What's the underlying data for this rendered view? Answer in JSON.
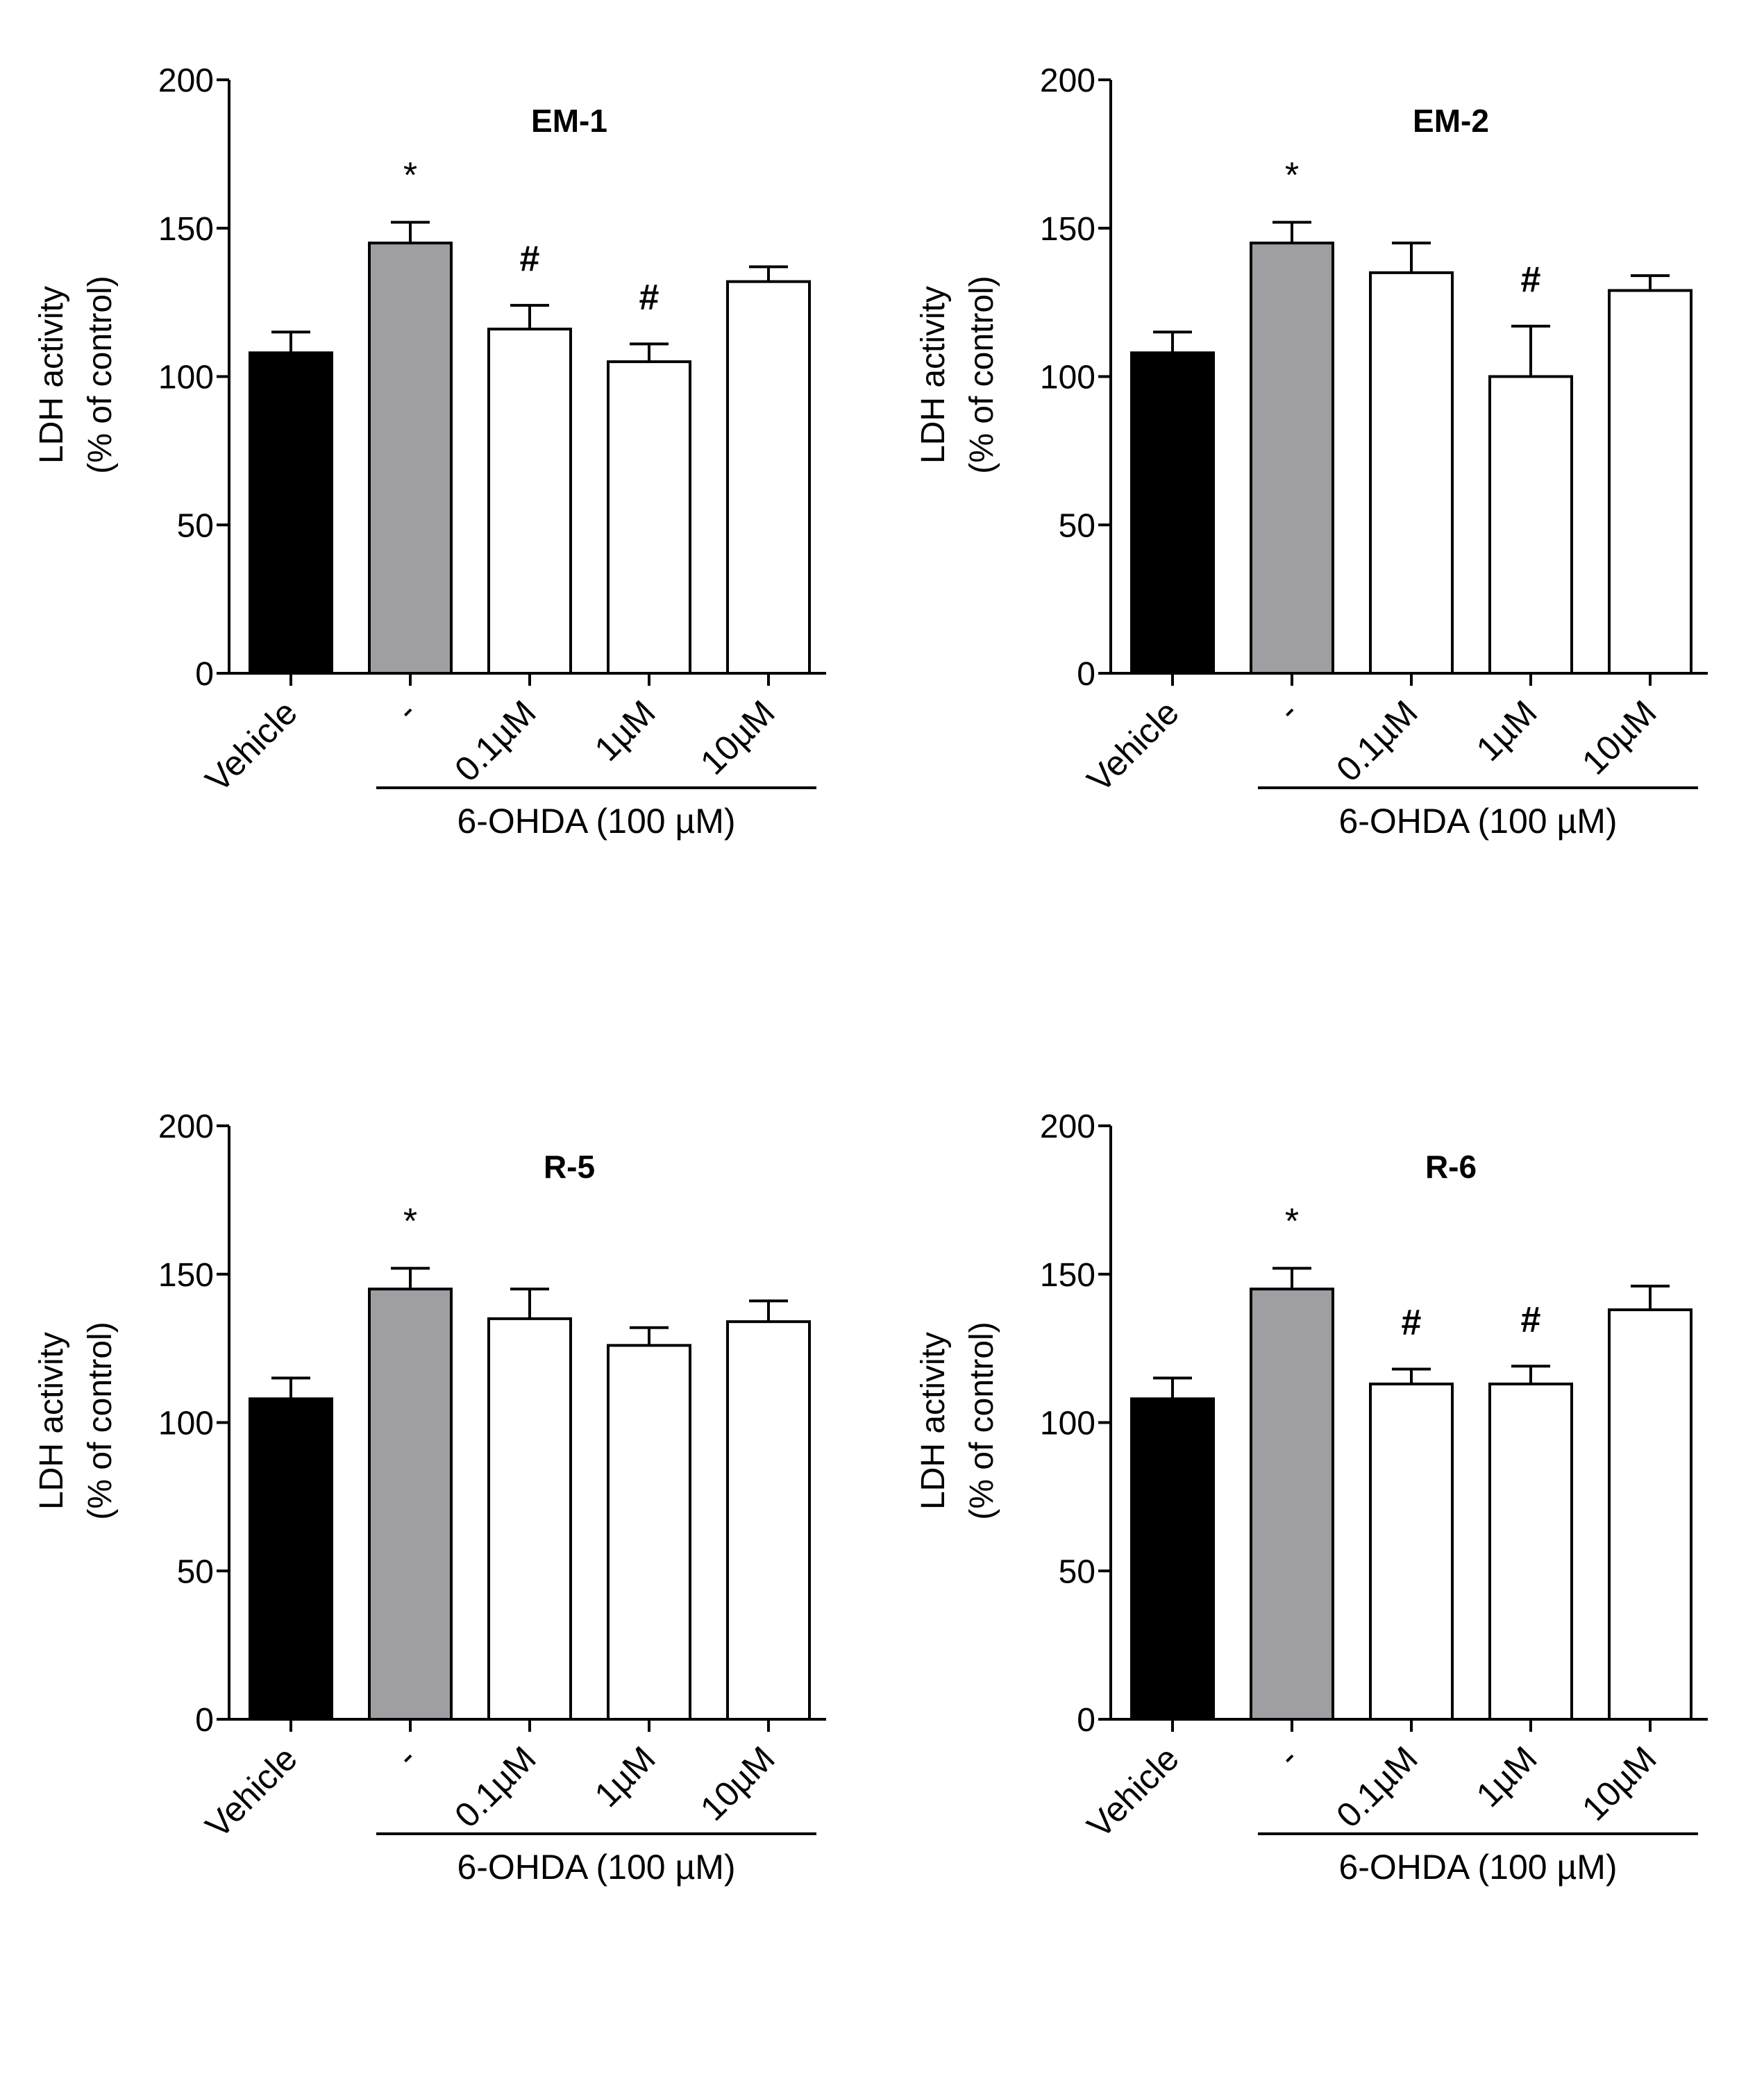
{
  "chart_data": [
    {
      "type": "bar",
      "title": "EM-1",
      "ylabel_line1": "LDH activity",
      "ylabel_line2": "(% of control)",
      "ylim": [
        0,
        200
      ],
      "yticks": [
        "0",
        "50",
        "100",
        "150",
        "200"
      ],
      "categories": [
        "Vehicle",
        "-",
        "0.1µM",
        "1µM",
        "10µM"
      ],
      "values": [
        108,
        145,
        116,
        105,
        132
      ],
      "errors": [
        7,
        7,
        8,
        6,
        5
      ],
      "significance": [
        "",
        "*",
        "#",
        "#",
        ""
      ],
      "group_label": "6-OHDA (100 µM)",
      "bar_colors": [
        "#000000",
        "#9e9ea3",
        "#ffffff",
        "#ffffff",
        "#ffffff"
      ]
    },
    {
      "type": "bar",
      "title": "EM-2",
      "ylabel_line1": "LDH activity",
      "ylabel_line2": "(% of control)",
      "ylim": [
        0,
        200
      ],
      "yticks": [
        "0",
        "50",
        "100",
        "150",
        "200"
      ],
      "categories": [
        "Vehicle",
        "-",
        "0.1µM",
        "1µM",
        "10µM"
      ],
      "values": [
        108,
        145,
        135,
        100,
        129
      ],
      "errors": [
        7,
        7,
        10,
        17,
        5
      ],
      "significance": [
        "",
        "*",
        "",
        "#",
        ""
      ],
      "group_label": "6-OHDA (100 µM)",
      "bar_colors": [
        "#000000",
        "#9e9ea3",
        "#ffffff",
        "#ffffff",
        "#ffffff"
      ]
    },
    {
      "type": "bar",
      "title": "R-5",
      "ylabel_line1": "LDH activity",
      "ylabel_line2": "(% of control)",
      "ylim": [
        0,
        200
      ],
      "yticks": [
        "0",
        "50",
        "100",
        "150",
        "200"
      ],
      "categories": [
        "Vehicle",
        "-",
        "0.1µM",
        "1µM",
        "10µM"
      ],
      "values": [
        108,
        145,
        135,
        126,
        134
      ],
      "errors": [
        7,
        7,
        10,
        6,
        7
      ],
      "significance": [
        "",
        "*",
        "",
        "",
        ""
      ],
      "group_label": "6-OHDA (100 µM)",
      "bar_colors": [
        "#000000",
        "#9e9ea3",
        "#ffffff",
        "#ffffff",
        "#ffffff"
      ]
    },
    {
      "type": "bar",
      "title": "R-6",
      "ylabel_line1": "LDH activity",
      "ylabel_line2": "(% of control)",
      "ylim": [
        0,
        200
      ],
      "yticks": [
        "0",
        "50",
        "100",
        "150",
        "200"
      ],
      "categories": [
        "Vehicle",
        "-",
        "0.1µM",
        "1µM",
        "10µM"
      ],
      "values": [
        108,
        145,
        113,
        113,
        138
      ],
      "errors": [
        7,
        7,
        5,
        6,
        8
      ],
      "significance": [
        "",
        "*",
        "#",
        "#",
        ""
      ],
      "group_label": "6-OHDA (100 µM)",
      "bar_colors": [
        "#000000",
        "#9e9ea3",
        "#ffffff",
        "#ffffff",
        "#ffffff"
      ]
    }
  ]
}
